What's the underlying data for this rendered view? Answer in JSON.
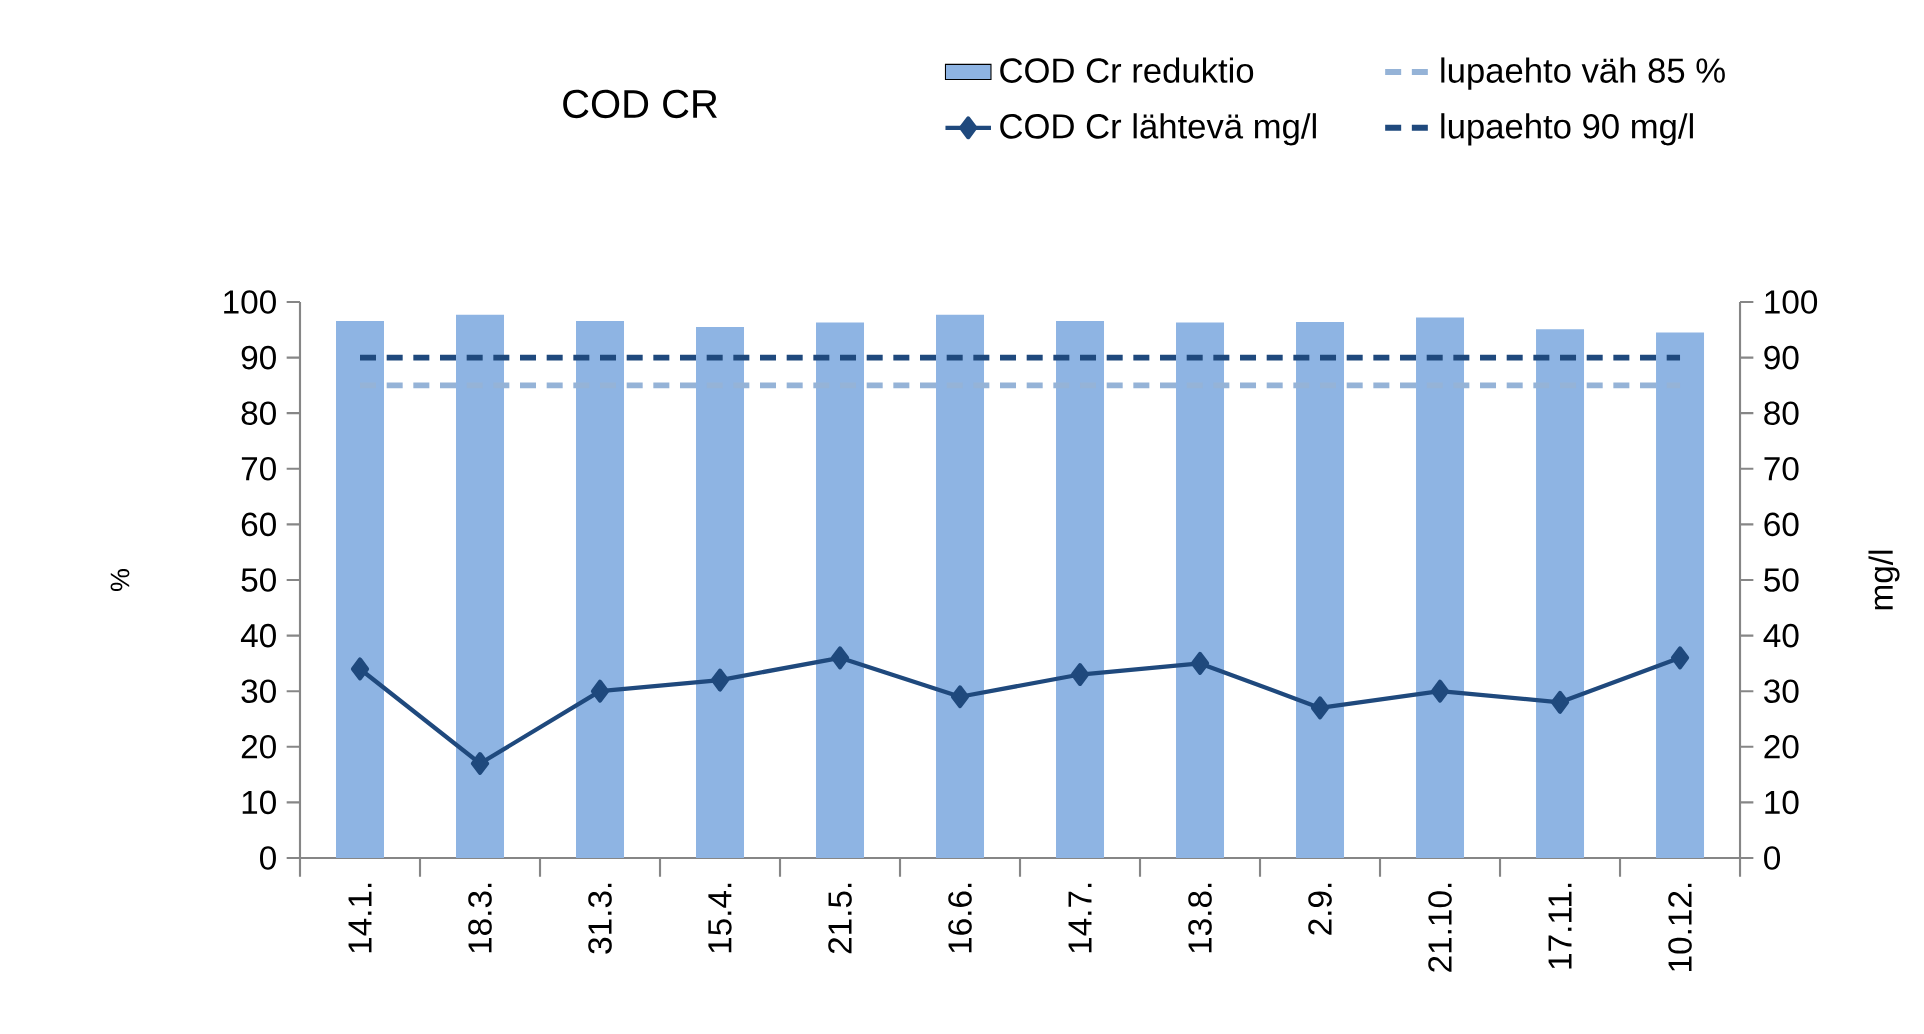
{
  "chart_data": {
    "type": "bar",
    "title": "COD CR",
    "ylabel": "%",
    "y2label": "mg/l",
    "categories": [
      "14.1.",
      "18.3.",
      "31.3.",
      "15.4.",
      "21.5.",
      "16.6.",
      "14.7.",
      "13.8.",
      "2.9.",
      "21.10.",
      "17.11.",
      "10.12."
    ],
    "series": [
      {
        "name": "COD Cr reduktio",
        "color": "#8eb4e3",
        "values": [
          96.6,
          97.7,
          96.6,
          95.5,
          96.3,
          97.7,
          96.6,
          96.3,
          96.4,
          97.2,
          95.1,
          94.5
        ]
      },
      {
        "name": "lupaehto väh 85 %",
        "type": "line",
        "color": "#95b3d7",
        "line_style": "dashed",
        "marker": "none",
        "values": [
          85,
          85,
          85,
          85,
          85,
          85,
          85,
          85,
          85,
          85,
          85,
          85
        ]
      },
      {
        "name": "COD Cr lähtevä mg/l",
        "type": "line",
        "axis": "y2",
        "color": "#1f497d",
        "marker": "diamond",
        "line_style": "solid",
        "values": [
          34,
          17,
          30,
          32,
          36,
          29,
          33,
          35,
          27,
          30,
          28,
          36
        ]
      },
      {
        "name": "lupaehto 90 mg/l",
        "type": "line",
        "axis": "y2",
        "color": "#1f497d",
        "line_style": "dashed",
        "marker": "none",
        "values": [
          90,
          90,
          90,
          90,
          90,
          90,
          90,
          90,
          90,
          90,
          90,
          90
        ]
      }
    ],
    "ylim": [
      0,
      100
    ],
    "yticks": [
      0,
      10,
      20,
      30,
      40,
      50,
      60,
      70,
      80,
      90,
      100
    ],
    "y2lim": [
      0,
      100
    ],
    "y2ticks": [
      0,
      10,
      20,
      30,
      40,
      50,
      60,
      70,
      80,
      90,
      100
    ],
    "grid": false,
    "legend": "top right"
  }
}
